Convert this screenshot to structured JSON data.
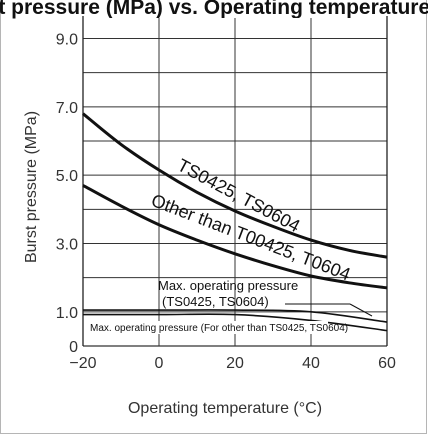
{
  "title_fragment": "Burst pressure (MPa) vs. Operating temperature (°C)",
  "chart_data": {
    "type": "line",
    "xlabel": "Operating temperature (°C)",
    "ylabel": "Burst pressure (MPa)",
    "xlim": [
      -20,
      60
    ],
    "ylim": [
      0,
      9.6
    ],
    "x_ticks": [
      "−20",
      "0",
      "20",
      "40",
      "60"
    ],
    "y_ticks": [
      "0",
      "1.0",
      "3.0",
      "5.0",
      "7.0",
      "9.0"
    ],
    "grid": true,
    "series": [
      {
        "name": "TS0425, TS0604",
        "x": [
          -20,
          -10,
          0,
          10,
          20,
          30,
          40,
          50,
          60
        ],
        "y": [
          6.8,
          5.9,
          5.15,
          4.5,
          3.95,
          3.5,
          3.1,
          2.8,
          2.6
        ]
      },
      {
        "name": "Other than T00425, T0604",
        "x": [
          -20,
          -10,
          0,
          10,
          20,
          30,
          40,
          50,
          60
        ],
        "y": [
          4.7,
          4.1,
          3.55,
          3.1,
          2.7,
          2.35,
          2.05,
          1.85,
          1.7
        ]
      },
      {
        "name": "Max. operating pressure (TS0425, TS0604)",
        "x": [
          -20,
          0,
          20,
          40,
          60
        ],
        "y": [
          1.05,
          1.05,
          1.05,
          1.0,
          0.7
        ]
      },
      {
        "name": "Max. operating pressure (For other than TS0425, TS0604)",
        "x": [
          -20,
          0,
          20,
          40,
          60
        ],
        "y": [
          0.92,
          0.92,
          0.92,
          0.75,
          0.45
        ]
      }
    ],
    "annotations": [
      "Max. operating pressure",
      "(TS0425, TS0604)",
      "Max. operating pressure (For other than TS0425, TS0604)"
    ]
  }
}
